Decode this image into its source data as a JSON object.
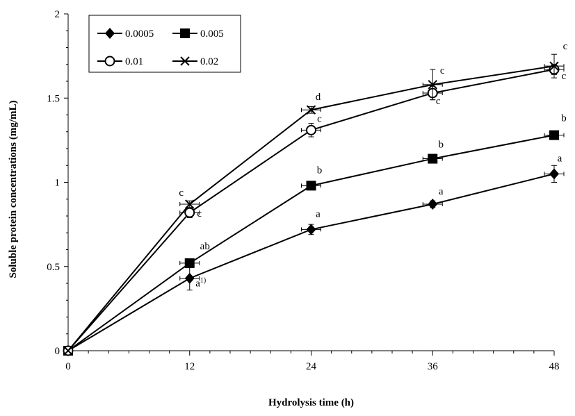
{
  "chart_data": {
    "type": "line",
    "title": "",
    "xlabel": "Hydrolysis time (h)",
    "ylabel": "Soluble protein concentrations (mg/mL)",
    "x": [
      0,
      12,
      24,
      36,
      48
    ],
    "xlim": [
      0,
      48
    ],
    "ylim": [
      0,
      2
    ],
    "xticks": [
      "0",
      "12",
      "24",
      "36",
      "48"
    ],
    "yticks": [
      "0",
      "0.5",
      "1",
      "1.5",
      "2"
    ],
    "legend_position": "top-left",
    "series": [
      {
        "name": "0.0005",
        "marker": "filled-diamond",
        "values": [
          0,
          0.43,
          0.72,
          0.87,
          1.05
        ],
        "errors": [
          0,
          0.07,
          0.03,
          0.02,
          0.05
        ],
        "labels": [
          "",
          "a",
          "a",
          "a",
          "a"
        ],
        "sup": [
          "",
          "1)",
          "",
          "",
          ""
        ]
      },
      {
        "name": "0.005",
        "marker": "filled-square",
        "values": [
          0,
          0.52,
          0.98,
          1.14,
          1.28
        ],
        "errors": [
          0,
          0.02,
          0.02,
          0.02,
          0.02
        ],
        "labels": [
          "",
          "ab",
          "b",
          "b",
          "b"
        ],
        "sup": [
          "",
          "",
          "",
          "",
          ""
        ]
      },
      {
        "name": "0.01",
        "marker": "open-circle",
        "values": [
          0,
          0.82,
          1.31,
          1.53,
          1.67
        ],
        "errors": [
          0,
          0.03,
          0.04,
          0.04,
          0.03
        ],
        "labels": [
          "",
          "c",
          "c",
          "c",
          "c"
        ],
        "sup": [
          "",
          "",
          "",
          "",
          ""
        ]
      },
      {
        "name": "0.02",
        "marker": "x-cross",
        "values": [
          0,
          0.87,
          1.43,
          1.58,
          1.69
        ],
        "errors": [
          0,
          0.02,
          0.02,
          0.09,
          0.07
        ],
        "labels": [
          "",
          "c",
          "d",
          "c",
          "c"
        ],
        "sup": [
          "",
          "",
          "",
          "",
          ""
        ]
      }
    ]
  }
}
